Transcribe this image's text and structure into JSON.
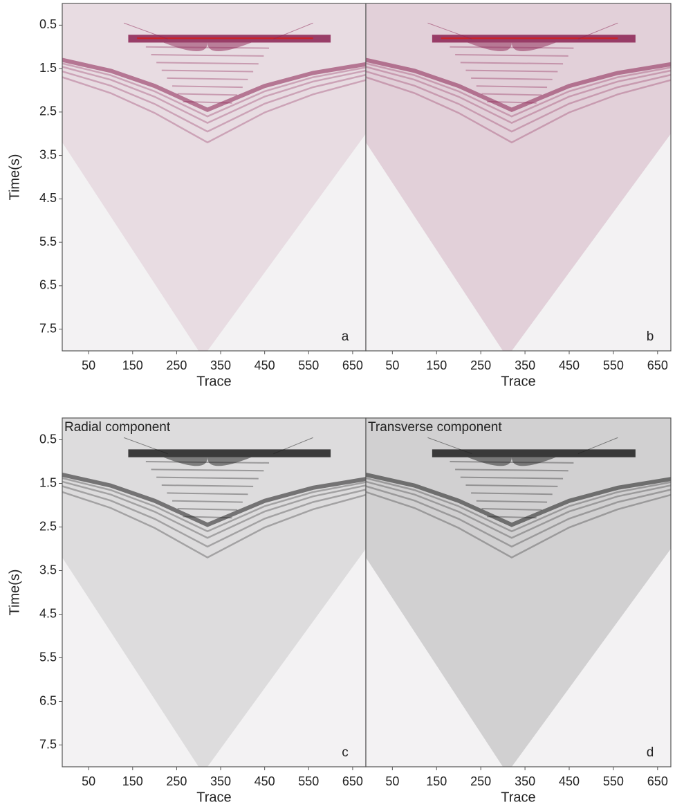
{
  "chart_data": [
    {
      "type": "seismic",
      "panel_label": "a",
      "xlabel": "Trace",
      "ylabel": "Time(s)",
      "color": "#8b2252",
      "xlim": [
        -10,
        680
      ],
      "xticks": [
        50,
        150,
        250,
        350,
        450,
        550,
        650
      ],
      "ylim": [
        0,
        8
      ],
      "yticks": [
        0.5,
        1.5,
        2.5,
        3.5,
        4.5,
        5.5,
        6.5,
        7.5
      ],
      "y_inverted": true
    },
    {
      "type": "seismic",
      "panel_label": "b",
      "xlabel": "Trace",
      "color": "#8b2252",
      "xlim": [
        -10,
        680
      ],
      "xticks": [
        50,
        150,
        250,
        350,
        450,
        550,
        650
      ],
      "ylim": [
        0,
        8
      ],
      "y_inverted": true
    },
    {
      "type": "seismic",
      "panel_label": "c",
      "title": "Radial component",
      "xlabel": "Trace",
      "ylabel": "Time(s)",
      "color": "#1e1e1e",
      "xlim": [
        -10,
        680
      ],
      "xticks": [
        50,
        150,
        250,
        350,
        450,
        550,
        650
      ],
      "ylim": [
        0,
        8
      ],
      "yticks": [
        0.5,
        1.5,
        2.5,
        3.5,
        4.5,
        5.5,
        6.5,
        7.5
      ],
      "y_inverted": true
    },
    {
      "type": "seismic",
      "panel_label": "d",
      "title": "Transverse component",
      "xlabel": "Trace",
      "color": "#1e1e1e",
      "xlim": [
        -10,
        680
      ],
      "xticks": [
        50,
        150,
        250,
        350,
        450,
        550,
        650
      ],
      "ylim": [
        0,
        8
      ],
      "y_inverted": true
    }
  ]
}
